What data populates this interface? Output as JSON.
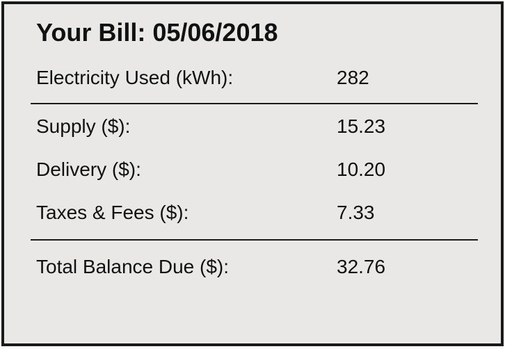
{
  "bill": {
    "title": "Your Bill: 05/06/2018",
    "rows": [
      {
        "label": "Electricity Used (kWh):",
        "value": "282"
      },
      {
        "label": "Supply ($):",
        "value": "15.23"
      },
      {
        "label": "Delivery ($):",
        "value": "10.20"
      },
      {
        "label": "Taxes & Fees ($):",
        "value": "7.33"
      },
      {
        "label": "Total Balance Due ($):",
        "value": "32.76"
      }
    ]
  },
  "colors": {
    "background": "#e9e8e7",
    "border": "#1a1a1a",
    "text": "#111111"
  }
}
